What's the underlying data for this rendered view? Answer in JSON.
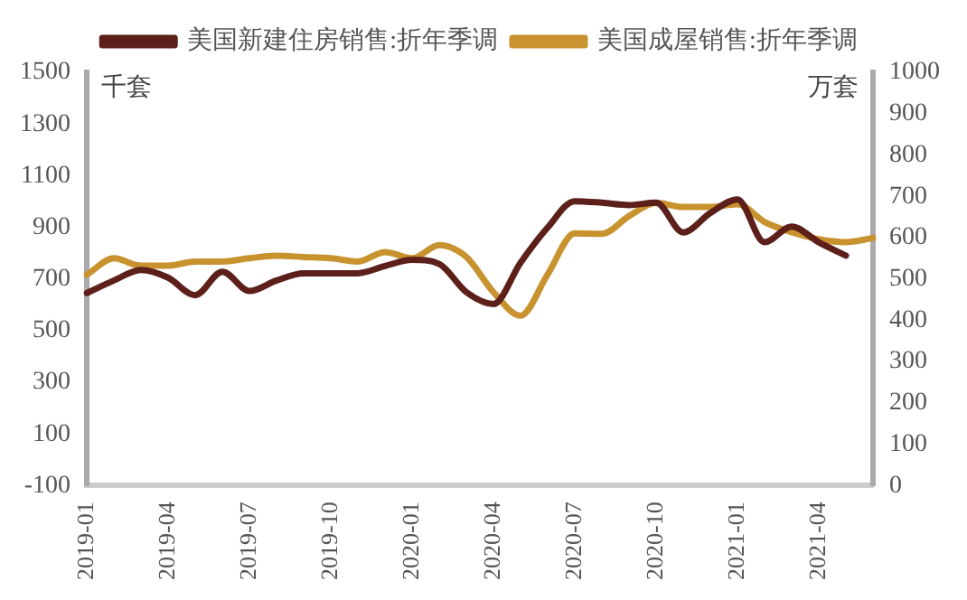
{
  "chart_data": {
    "type": "line",
    "ylabel": "千套",
    "y2label": "万套",
    "categories": [
      "2019-01",
      null,
      null,
      "2019-04",
      null,
      null,
      "2019-07",
      null,
      null,
      "2019-10",
      null,
      null,
      "2020-01",
      null,
      null,
      "2020-04",
      null,
      null,
      "2020-07",
      null,
      null,
      "2020-10",
      null,
      null,
      "2021-01",
      null,
      null,
      "2021-04",
      null,
      null
    ],
    "series": [
      {
        "name": "美国新建住房销售:折年季调",
        "color": "#5c1f1a",
        "values": [
          645,
          694,
          735,
          705,
          637,
          728,
          653,
          694,
          722,
          722,
          722,
          750,
          774,
          758,
          649,
          603,
          763,
          899,
          1001,
          995,
          986,
          995,
          880,
          955,
          1008,
          842,
          903,
          842,
          790,
          null
        ]
      },
      {
        "name": "美国成屋销售:折年季调",
        "color": "#c8922e",
        "axis": "y2",
        "values": [
          510,
          550,
          532,
          532,
          542,
          542,
          550,
          556,
          553,
          550,
          542,
          565,
          550,
          582,
          553,
          468,
          411,
          511,
          610,
          609,
          652,
          684,
          674,
          674,
          681,
          638,
          613,
          596,
          589,
          599
        ]
      }
    ],
    "ylim": [
      -100,
      1500
    ],
    "yticks": [
      -100,
      100,
      300,
      500,
      700,
      900,
      1100,
      1300,
      1500
    ],
    "y2lim": [
      0,
      1000
    ],
    "y2ticks": [
      0,
      100,
      200,
      300,
      400,
      500,
      600,
      700,
      800,
      900,
      1000
    ],
    "grid": false,
    "legend": "top",
    "marker": "none",
    "line_style": "solid"
  }
}
